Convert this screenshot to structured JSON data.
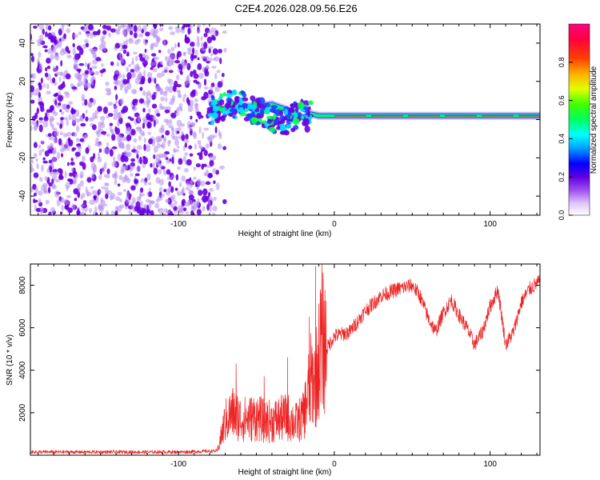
{
  "title": "C2E4.2026.028.09.56.E26",
  "colors": {
    "points_dense": "#6a00e0",
    "points_light": "#b48cf0",
    "ridge_outer": "#2040ff",
    "ridge_mid": "#00e0ff",
    "ridge_inner": "#00ff40",
    "ridge_core": "#ff2020",
    "snr_line": "#ee2222"
  },
  "chart_data": [
    {
      "type": "heatmap",
      "xlabel": "Height of straight line (km)",
      "ylabel": "Frequency (Hz)",
      "xlim": [
        -195,
        132
      ],
      "ylim": [
        -50,
        50
      ],
      "xticks": [
        -100,
        0,
        100
      ],
      "yticks": [
        -40,
        -20,
        0,
        20,
        40
      ],
      "xticklabels": [
        "-100",
        "0",
        "100"
      ],
      "yticklabels": [
        "-40",
        "-20",
        "0",
        "20",
        "40"
      ],
      "noise_region_x": [
        -195,
        -78
      ],
      "ridge_x": [
        -78,
        -70,
        -60,
        -50,
        -40,
        -30,
        -20,
        -15,
        -10,
        0,
        20,
        40,
        60,
        80,
        90,
        100,
        110,
        120,
        132
      ],
      "ridge_y": [
        3,
        6,
        7,
        7,
        8,
        5,
        1,
        3,
        2,
        2,
        2,
        2,
        2,
        2,
        2,
        2,
        2,
        2,
        2
      ],
      "colorbar": {
        "label": "Normalized spectral amplitude",
        "range": [
          0,
          1
        ],
        "ticks": [
          0.0,
          0.2,
          0.4,
          0.6,
          0.8
        ],
        "ticklabels": [
          "0.0",
          "0.2",
          "0.4",
          "0.6",
          "0.8"
        ],
        "colors": [
          "#ffffff",
          "#e0c8ff",
          "#a050f0",
          "#6000e0",
          "#0000ff",
          "#00a0ff",
          "#00ffff",
          "#00ff60",
          "#40ff00",
          "#e0ff00",
          "#ffb000",
          "#ff4000",
          "#ff0040",
          "#ff0080"
        ]
      }
    },
    {
      "type": "line",
      "xlabel": "Height of straight line (km)",
      "ylabel": "SNR (10 * v/v)",
      "xlim": [
        -195,
        132
      ],
      "ylim": [
        0,
        9000
      ],
      "xticks": [
        -100,
        0,
        100
      ],
      "yticks": [
        2000,
        4000,
        6000,
        8000
      ],
      "xticklabels": [
        "-100",
        "0",
        "100"
      ],
      "yticklabels": [
        "2000",
        "4000",
        "6000",
        "8000"
      ],
      "series": [
        {
          "name": "SNR",
          "x": [
            -195,
            -150,
            -100,
            -75,
            -70,
            -65,
            -60,
            -55,
            -50,
            -45,
            -40,
            -35,
            -30,
            -25,
            -20,
            -15,
            -12,
            -10,
            -8,
            -5,
            0,
            10,
            20,
            30,
            40,
            45,
            50,
            55,
            60,
            65,
            70,
            75,
            80,
            85,
            90,
            95,
            100,
            105,
            110,
            115,
            120,
            125,
            132
          ],
          "y": [
            150,
            150,
            150,
            200,
            1600,
            2000,
            1700,
            1700,
            1800,
            1600,
            1600,
            1700,
            1800,
            1500,
            1800,
            3500,
            3500,
            4500,
            5500,
            5000,
            5600,
            5800,
            6800,
            7500,
            7800,
            7900,
            8000,
            7500,
            6500,
            5800,
            6700,
            7300,
            6600,
            6000,
            5200,
            5800,
            7000,
            7800,
            5200,
            5800,
            7200,
            7800,
            8200
          ],
          "peaks": [
            {
              "x": -63,
              "y": 4300
            },
            {
              "x": -45,
              "y": 3700
            },
            {
              "x": -30,
              "y": 4600
            },
            {
              "x": -16,
              "y": 6500
            },
            {
              "x": -12,
              "y": 8900
            },
            {
              "x": -9,
              "y": 7800
            }
          ]
        }
      ]
    }
  ]
}
